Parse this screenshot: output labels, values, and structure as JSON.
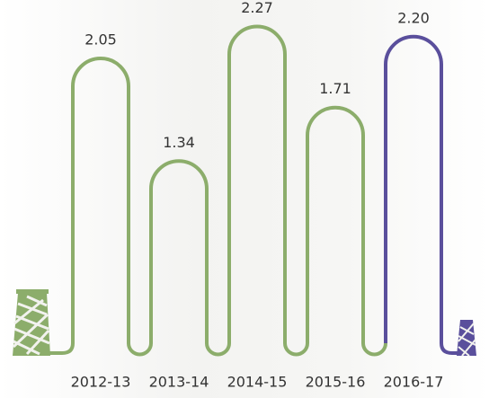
{
  "chart_data": {
    "type": "thread-bar",
    "categories": [
      "2012-13",
      "2013-14",
      "2014-15",
      "2015-16",
      "2016-17"
    ],
    "values": [
      2.05,
      1.34,
      2.27,
      1.71,
      2.2
    ],
    "value_labels": [
      "2.05",
      "1.34",
      "2.27",
      "1.71",
      "2.20"
    ],
    "colors": [
      "#8cad6b",
      "#8cad6b",
      "#8cad6b",
      "#8cad6b",
      "#5a4f9c"
    ]
  }
}
